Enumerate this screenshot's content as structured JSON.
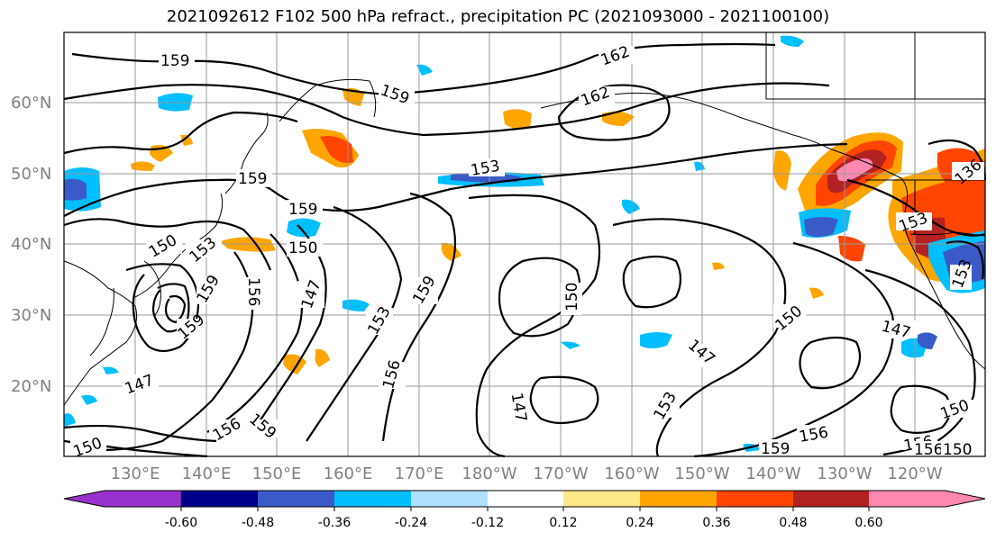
{
  "title": "2021092612 F102 500 hPa refract., precipitation PC (2021093000 - 2021100100)",
  "lat_labels": [
    "60°N",
    "50°N",
    "40°N",
    "30°N",
    "20°N"
  ],
  "lon_labels": [
    "130°E",
    "140°E",
    "150°E",
    "160°E",
    "170°E",
    "180°W",
    "170°W",
    "160°W",
    "150°W",
    "140°W",
    "130°W",
    "120°W"
  ],
  "contour_levels": [
    "147",
    "150",
    "153",
    "156",
    "159",
    "162"
  ],
  "contour_labels": [
    "159",
    "162",
    "159",
    "162",
    "159",
    "153",
    "159",
    "150",
    "150",
    "153",
    "156",
    "159",
    "147",
    "159",
    "153",
    "156",
    "150",
    "150",
    "147",
    "147",
    "153",
    "147",
    "147",
    "159",
    "156",
    "159",
    "156",
    "156",
    "150",
    "156",
    "150",
    "153",
    "136",
    "153",
    "159",
    "150"
  ],
  "colorbar": {
    "tick_labels": [
      "-0.60",
      "-0.48",
      "-0.36",
      "-0.24",
      "-0.12",
      "0.12",
      "0.24",
      "0.36",
      "0.48",
      "0.60"
    ],
    "colors": [
      "#9932cc",
      "#00008b",
      "#3a5bc7",
      "#00bfff",
      "#b0e0ff",
      "#ffffff",
      "#ffe88a",
      "#ffa500",
      "#ff4500",
      "#b22222",
      "#ff88b0"
    ]
  },
  "colors": {
    "contour": "#000000",
    "grid": "#999999",
    "coast": "#000000",
    "tick_text": "#808080"
  }
}
